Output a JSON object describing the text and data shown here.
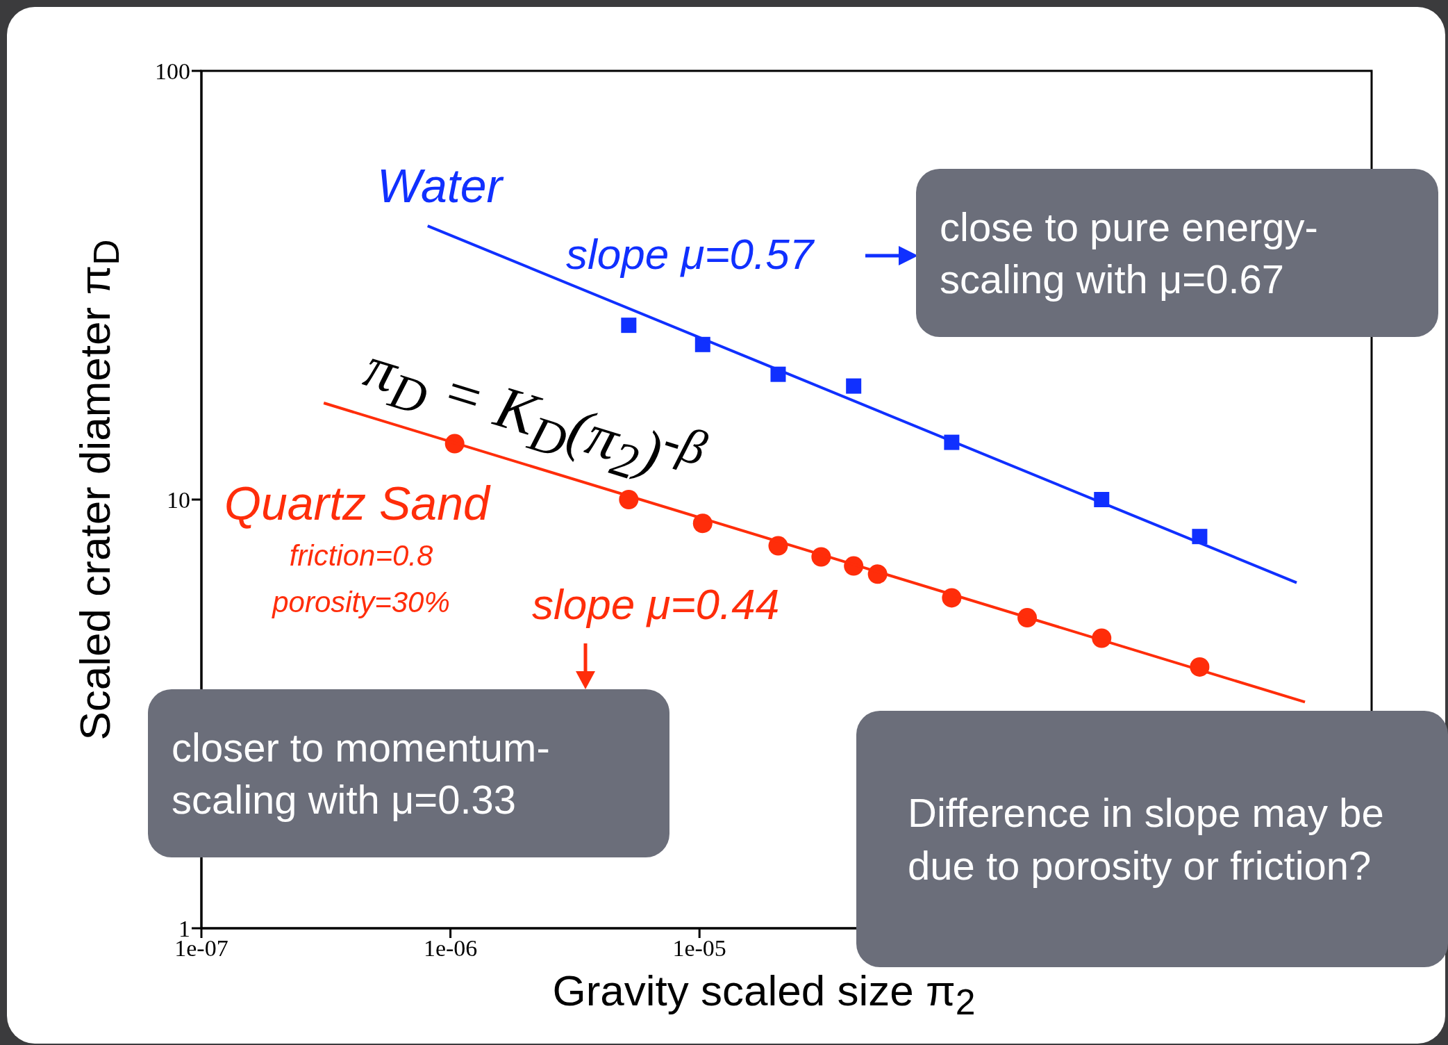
{
  "chart_data": {
    "type": "scatter",
    "xlabel": "Gravity scaled size π$_{2}$",
    "ylabel": "Scaled crater diameter π$_{D}$",
    "log": "xy",
    "xlim": [
      1e-07,
      0.005
    ],
    "ylim": [
      1,
      100
    ],
    "xticks": [
      {
        "value": 1e-07,
        "label": "1e-07"
      },
      {
        "value": 1e-06,
        "label": "1e-06"
      },
      {
        "value": 1e-05,
        "label": "1e-05"
      },
      {
        "value": 0.0001,
        "label": null
      },
      {
        "value": 0.001,
        "label": null
      }
    ],
    "yticks": [
      1,
      10,
      100
    ],
    "series": [
      {
        "name": "Water",
        "marker": "square",
        "color": "#1030ff",
        "x": [
          5.2e-06,
          1.03e-05,
          2.07e-05,
          4.16e-05,
          0.000103,
          0.000412,
          0.00102
        ],
        "values": [
          25.5,
          23.0,
          19.6,
          18.4,
          13.6,
          10.0,
          8.2
        ]
      },
      {
        "type": "line",
        "color": "#1030ff",
        "x": [
          8.1e-07,
          0.0025
        ],
        "values": [
          43.5,
          6.4
        ]
      },
      {
        "name": "Quartz Sand",
        "marker": "circle",
        "color": "#ff2d0a",
        "x": [
          1.04e-06,
          5.2e-06,
          1.03e-05,
          2.07e-05,
          3.08e-05,
          4.16e-05,
          5.19e-05,
          0.000103,
          0.000207,
          0.000412,
          0.00102
        ],
        "values": [
          13.5,
          10.0,
          8.8,
          7.8,
          7.35,
          7.0,
          6.7,
          5.9,
          5.3,
          4.75,
          4.07
        ]
      },
      {
        "type": "line",
        "color": "#ff2d0a",
        "x": [
          3.1e-07,
          0.0027
        ],
        "values": [
          16.8,
          3.37
        ]
      }
    ],
    "annotations": [
      "slope μ=0.57",
      "close to pure energy-scaling with μ=0.67",
      "π$_{D}$ = K$_{D}$(π$_{2}$)$^{-β}$",
      "friction=0.8",
      "porosity=30%",
      "slope μ=0.44",
      "closer to momentum-scaling with μ=0.33",
      "Difference in slope may be due to porosity or friction?"
    ]
  }
}
